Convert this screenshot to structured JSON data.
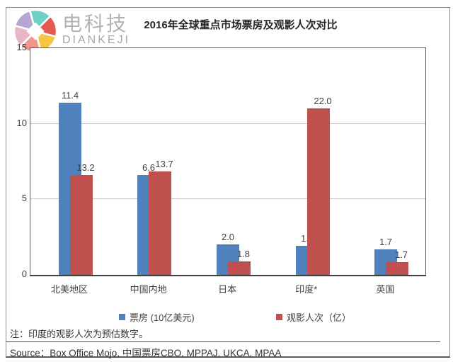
{
  "logo": {
    "text": "电科技",
    "subtext": "DIANKEJI"
  },
  "title": "2016年全球重点市场票房及观影人次对比",
  "chart_data": {
    "type": "bar",
    "title": "2016年全球重点市场票房及观影人次对比",
    "categories": [
      "北美地区",
      "中国内地",
      "日本",
      "印度*",
      "英国"
    ],
    "series": [
      {
        "name": "票房 (10亿美元)",
        "color": "#4F81BD",
        "axis": "primary",
        "values": [
          11.4,
          6.6,
          2.0,
          1.9,
          1.7
        ]
      },
      {
        "name": "观影人次（亿）",
        "color": "#C0504D",
        "axis": "secondary",
        "values": [
          13.2,
          13.7,
          1.8,
          22.0,
          1.7
        ]
      }
    ],
    "primary_axis": {
      "min": 0,
      "max": 15,
      "ticks": [
        0,
        5,
        10,
        15
      ]
    },
    "secondary_axis": {
      "min": 0,
      "max": 30,
      "visible": false
    },
    "grid": true,
    "legend_position": "bottom",
    "bar_style": "overlapped"
  },
  "note": "注：印度的观影人次为预估数字。",
  "source": "Source：Box Office Mojo, 中国票房CBO, MPPAJ, UKCA, MPAA",
  "colors": {
    "bar_blue": "#4F81BD",
    "bar_red": "#C0504D",
    "grid": "#C9C9C9",
    "axis": "#595959",
    "text": "#404040",
    "logo_petals": [
      "#6fd0c6",
      "#e25a50",
      "#f6c544",
      "#f2968c",
      "#eab6c6",
      "#b7a6d5"
    ]
  }
}
